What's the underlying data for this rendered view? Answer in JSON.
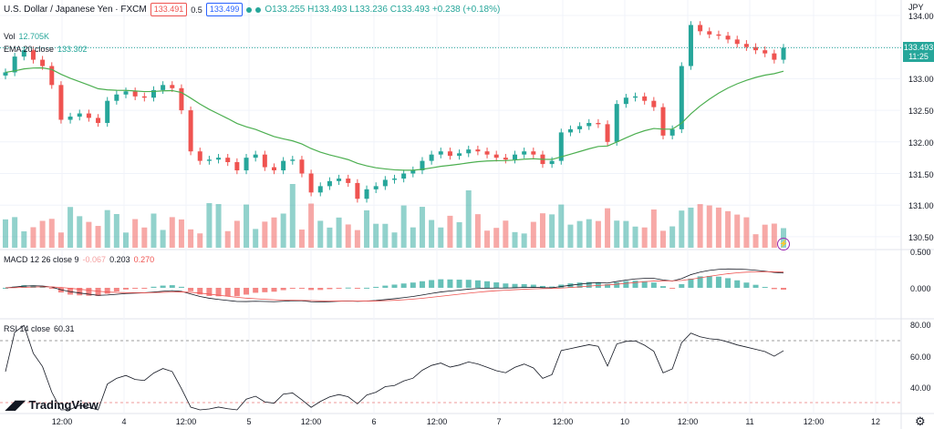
{
  "header": {
    "symbol": "U.S. Dollar / Japanese Yen · FXCM",
    "sell_price": "133.491",
    "spread": "0.5",
    "buy_price": "133.499",
    "ohlc": "O133.255 H133.493 L133.236 C133.493 +0.238 (+0.18%)",
    "vol_label": "Vol",
    "vol_value": "12.705K",
    "ema_label": "EMA 20 close",
    "ema_value": "133.302"
  },
  "currency": "JPY",
  "price_axis": [
    "134.000",
    "133.500",
    "133.000",
    "132.500",
    "132.000",
    "131.500",
    "131.000",
    "130.500"
  ],
  "price_tag": {
    "price": "133.493",
    "time": "11:25"
  },
  "macd": {
    "label": "MACD 12 26 close 9",
    "v1": "-0.067",
    "v2": "0.203",
    "v3": "0.270",
    "axis": [
      "0.500",
      "0.000"
    ]
  },
  "rsi": {
    "label": "RSI 14 close",
    "value": "60.31",
    "axis": [
      "80.00",
      "60.00",
      "40.00"
    ]
  },
  "time_axis": [
    "12:00",
    "4",
    "12:00",
    "5",
    "12:00",
    "6",
    "12:00",
    "7",
    "12:00",
    "10",
    "12:00",
    "11",
    "12:00",
    "12"
  ],
  "logo": "TradingView",
  "colors": {
    "up": "#26a69a",
    "down": "#ef5350",
    "ema": "#4caf50"
  },
  "chart_data": {
    "type": "candlestick",
    "close": [
      133.1,
      133.35,
      133.45,
      133.3,
      133.2,
      132.9,
      132.35,
      132.4,
      132.45,
      132.38,
      132.3,
      132.65,
      132.75,
      132.8,
      132.72,
      132.7,
      132.82,
      132.9,
      132.85,
      132.5,
      131.85,
      131.7,
      131.72,
      131.75,
      131.68,
      131.55,
      131.75,
      131.8,
      131.6,
      131.55,
      131.7,
      131.72,
      131.5,
      131.2,
      131.3,
      131.38,
      131.42,
      131.35,
      131.1,
      131.25,
      131.3,
      131.4,
      131.42,
      131.5,
      131.55,
      131.7,
      131.8,
      131.85,
      131.78,
      131.82,
      131.88,
      131.85,
      131.8,
      131.75,
      131.72,
      131.8,
      131.85,
      131.8,
      131.65,
      131.7,
      132.15,
      132.2,
      132.25,
      132.3,
      132.28,
      132.0,
      132.6,
      132.7,
      132.72,
      132.65,
      132.55,
      132.1,
      132.2,
      133.2,
      133.85,
      133.75,
      133.7,
      133.68,
      133.62,
      133.55,
      133.5,
      133.45,
      133.4,
      133.3,
      133.49
    ],
    "ema20_last": 133.302,
    "rsi_last": 60.31
  }
}
